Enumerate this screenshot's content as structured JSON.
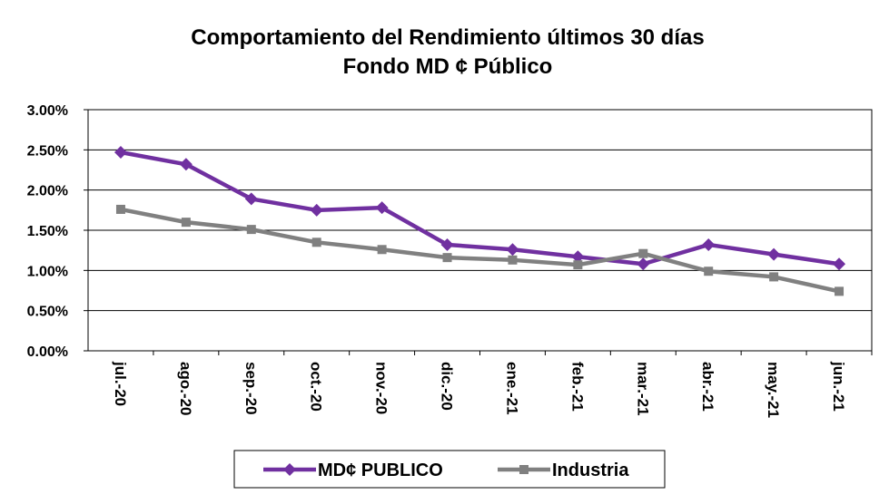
{
  "chart_data": {
    "type": "line",
    "title": "Comportamiento del Rendimiento últimos 30 días",
    "subtitle": "Fondo MD ¢ Público",
    "categories": [
      "jul.-20",
      "ago.-20",
      "sep.-20",
      "oct.-20",
      "nov.-20",
      "dic.-20",
      "ene.-21",
      "feb.-21",
      "mar.-21",
      "abr.-21",
      "may.-21",
      "jun.-21"
    ],
    "series": [
      {
        "name": "MD¢ PUBLICO",
        "color": "#7030a0",
        "marker": "diamond",
        "values": [
          2.47,
          2.32,
          1.89,
          1.75,
          1.78,
          1.32,
          1.26,
          1.17,
          1.08,
          1.32,
          1.2,
          1.08
        ]
      },
      {
        "name": "Industria",
        "color": "#808080",
        "marker": "square",
        "values": [
          1.76,
          1.6,
          1.51,
          1.35,
          1.26,
          1.16,
          1.13,
          1.07,
          1.21,
          0.99,
          0.92,
          0.74
        ]
      }
    ],
    "ylim": [
      0,
      3
    ],
    "yticks": [
      {
        "value": 0,
        "label": "0.00%"
      },
      {
        "value": 0.5,
        "label": "0.50%"
      },
      {
        "value": 1,
        "label": "1.00%"
      },
      {
        "value": 1.5,
        "label": "1.50%"
      },
      {
        "value": 2,
        "label": "2.00%"
      },
      {
        "value": 2.5,
        "label": "2.50%"
      },
      {
        "value": 3,
        "label": "3.00%"
      }
    ],
    "grid": true,
    "legend": "bottom"
  }
}
